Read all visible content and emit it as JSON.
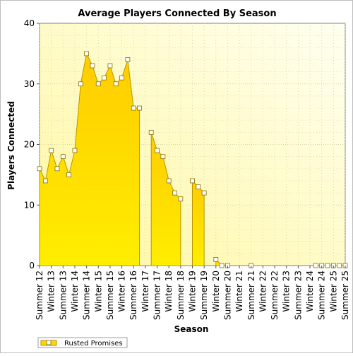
{
  "chart_data": {
    "type": "area",
    "title": "Average Players Connected By Season",
    "xlabel": "Season",
    "ylabel": "Players Connected",
    "ylim": [
      0,
      40
    ],
    "yticks": [
      0,
      10,
      20,
      30,
      40
    ],
    "grid": true,
    "legend_position": "bottom-left",
    "x_tick_labels": [
      "Summer 12",
      "Winter 13",
      "Summer 13",
      "Winter 14",
      "Summer 14",
      "Winter 15",
      "Summer 15",
      "Winter 16",
      "Summer 16",
      "Winter 17",
      "Summer 17",
      "Winter 18",
      "Summer 18",
      "Winter 19",
      "Summer 19",
      "Winter 20",
      "Summer 20",
      "Winter 21",
      "Summer 21",
      "Winter 22",
      "Summer 22",
      "Winter 23",
      "Summer 23",
      "Winter 24",
      "Summer 24",
      "Winter 25",
      "Summer 25"
    ],
    "series": [
      {
        "name": "Rusted Promises",
        "color": "#ffd700",
        "values": [
          16,
          14,
          19,
          16,
          18,
          15,
          19,
          30,
          35,
          33,
          30,
          31,
          33,
          30,
          31,
          34,
          26,
          26,
          null,
          22,
          19,
          18,
          14,
          12,
          11,
          null,
          14,
          13,
          12,
          null,
          1,
          0,
          0,
          null,
          null,
          null,
          0,
          null,
          null,
          null,
          null,
          null,
          null,
          null,
          null,
          null,
          null,
          0,
          0,
          0,
          0,
          0,
          0
        ]
      }
    ]
  }
}
